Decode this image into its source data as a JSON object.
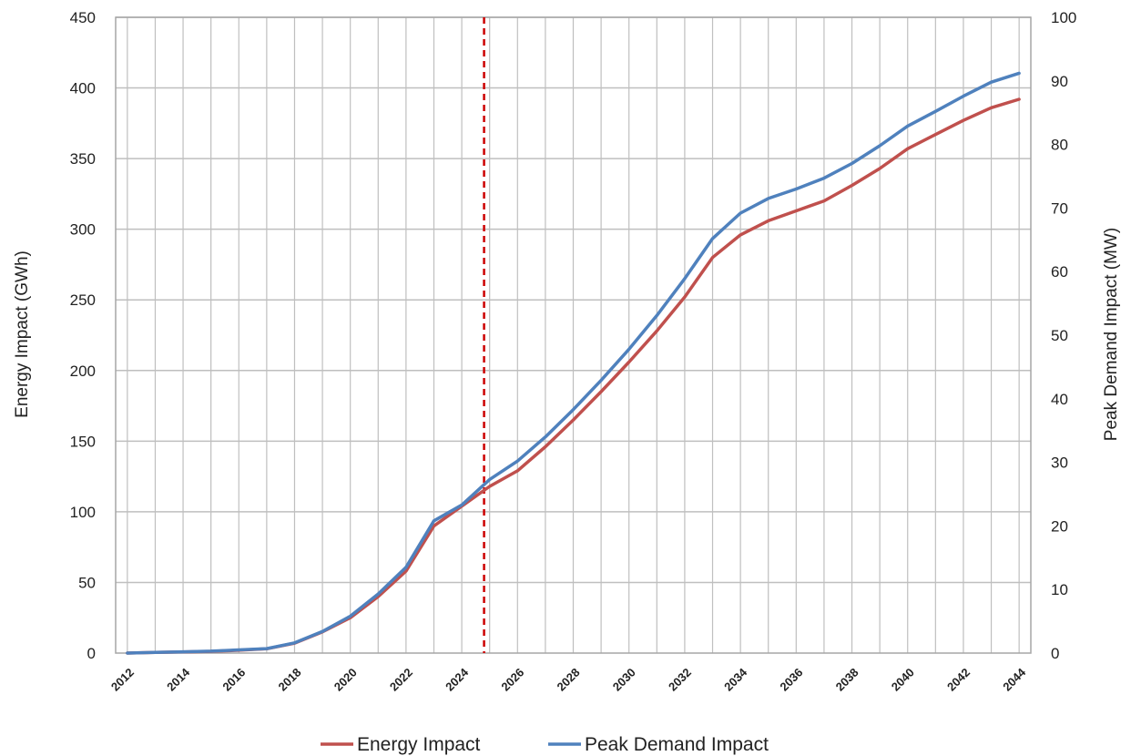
{
  "chart_data": {
    "type": "line",
    "x": [
      2012,
      2013,
      2014,
      2015,
      2016,
      2017,
      2018,
      2019,
      2020,
      2021,
      2022,
      2023,
      2024,
      2025,
      2026,
      2027,
      2028,
      2029,
      2030,
      2031,
      2032,
      2033,
      2034,
      2035,
      2036,
      2037,
      2038,
      2039,
      2040,
      2041,
      2042,
      2043,
      2044
    ],
    "x_tick_labels": [
      "2012",
      "2014",
      "2016",
      "2018",
      "2020",
      "2022",
      "2024",
      "2026",
      "2028",
      "2030",
      "2032",
      "2034",
      "2036",
      "2038",
      "2040",
      "2042",
      "2044"
    ],
    "xlim": [
      2011.58,
      2044.42
    ],
    "series": [
      {
        "name": "Energy Impact",
        "axis": "left",
        "color": "#c0504d",
        "values": [
          0,
          0.5,
          0.8,
          1.2,
          2,
          3,
          7,
          15,
          25,
          40,
          58,
          90,
          104,
          118,
          129,
          146,
          165,
          185,
          206,
          228,
          252,
          280,
          296,
          306,
          313,
          320,
          331,
          343,
          357,
          367,
          377,
          386,
          392
        ]
      },
      {
        "name": "Peak Demand Impact",
        "axis": "right",
        "color": "#4f81bd",
        "values": [
          0,
          0.1,
          0.2,
          0.3,
          0.5,
          0.7,
          1.6,
          3.4,
          5.8,
          9.3,
          13.5,
          20.8,
          23.3,
          27.3,
          30.2,
          34.0,
          38.3,
          42.9,
          47.8,
          53.1,
          58.9,
          65.2,
          69.2,
          71.5,
          73.0,
          74.7,
          77.0,
          79.8,
          82.9,
          85.2,
          87.6,
          89.8,
          91.2
        ]
      }
    ],
    "ylabel": "Energy Impact (GWh)",
    "ylim": [
      0,
      450
    ],
    "y_ticks": [
      0,
      50,
      100,
      150,
      200,
      250,
      300,
      350,
      400,
      450
    ],
    "y2label": "Peak Demand Impact (MW)",
    "y2lim": [
      0,
      100
    ],
    "y2_ticks": [
      0,
      10,
      20,
      30,
      40,
      50,
      60,
      70,
      80,
      90,
      100
    ],
    "reference_line": {
      "x": 2024.8,
      "color": "#cc0000",
      "style": "dashed"
    },
    "grid": true,
    "legend_position": "bottom-center",
    "gridline_color": "#bfbfbf"
  }
}
